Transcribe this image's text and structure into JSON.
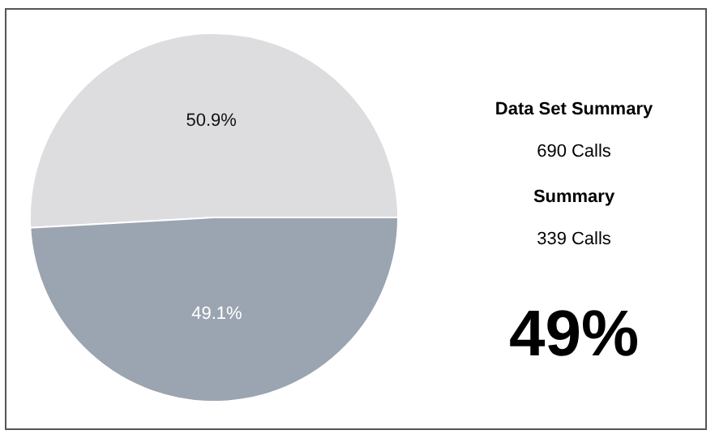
{
  "chart_data": {
    "type": "pie",
    "categories": [
      null,
      null
    ],
    "values": [
      50.9,
      49.1
    ],
    "colors": [
      "#dddcdf",
      "#9ba4b1"
    ],
    "value_labels": [
      "50.9%",
      "49.1%"
    ],
    "annotations": [
      "Data Set Summary",
      "690 Calls",
      "Summary",
      "339 Calls",
      "49%"
    ]
  }
}
